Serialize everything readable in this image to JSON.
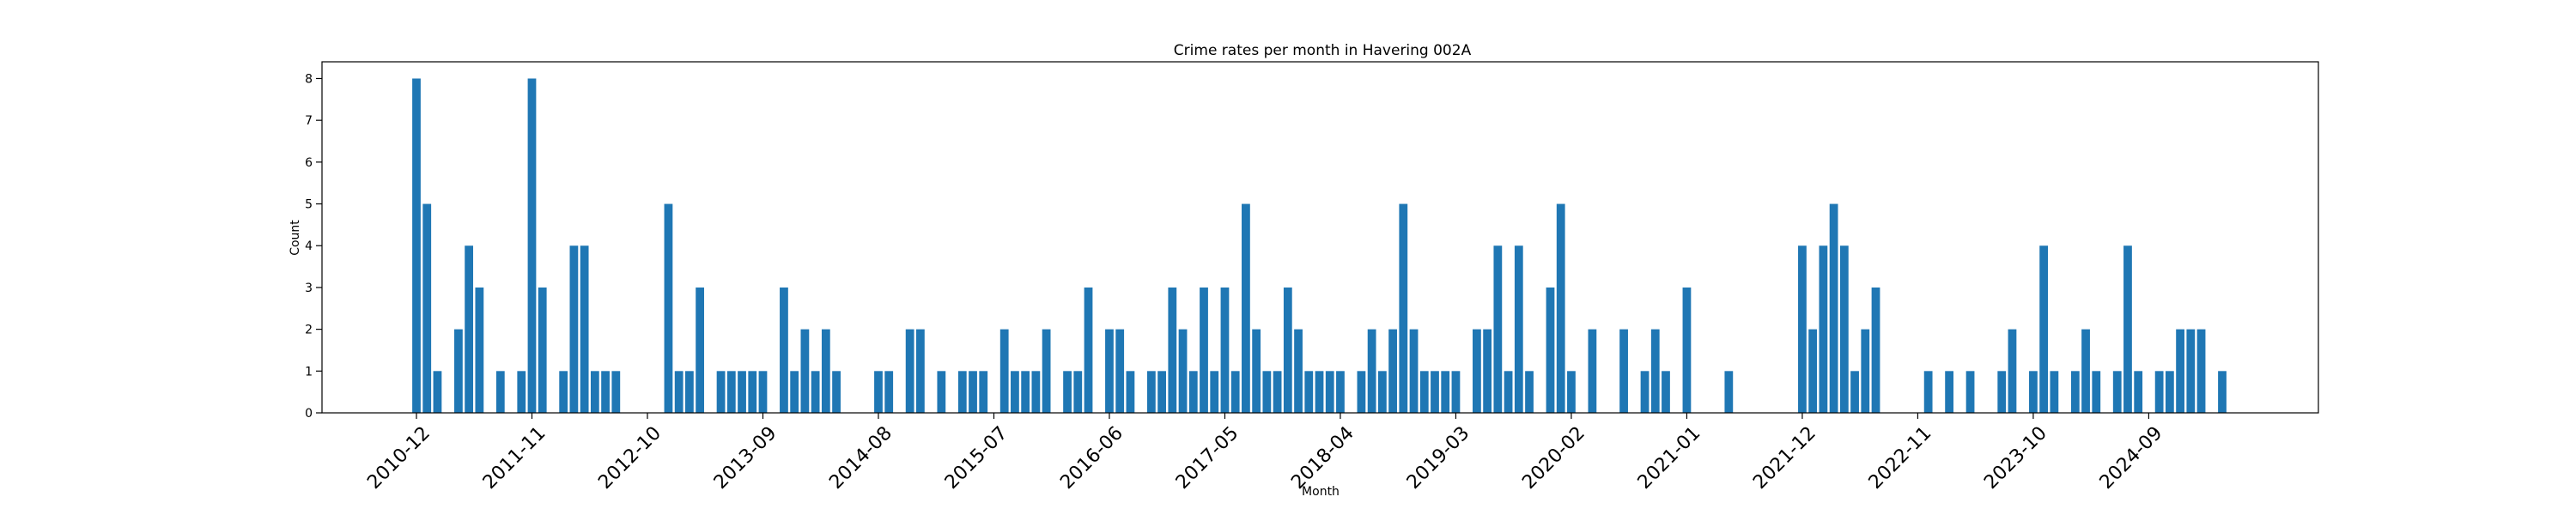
{
  "chart_data": {
    "type": "bar",
    "title": "Crime rates per month in Havering 002A",
    "xlabel": "Month",
    "ylabel": "Count",
    "ylim": [
      0,
      8.4
    ],
    "yticks": [
      0,
      1,
      2,
      3,
      4,
      5,
      6,
      7,
      8
    ],
    "xticks": [
      {
        "index": 0,
        "label": "2010-12"
      },
      {
        "index": 11,
        "label": "2011-11"
      },
      {
        "index": 22,
        "label": "2012-10"
      },
      {
        "index": 33,
        "label": "2013-09"
      },
      {
        "index": 44,
        "label": "2014-08"
      },
      {
        "index": 55,
        "label": "2015-07"
      },
      {
        "index": 66,
        "label": "2016-06"
      },
      {
        "index": 77,
        "label": "2017-05"
      },
      {
        "index": 88,
        "label": "2018-04"
      },
      {
        "index": 99,
        "label": "2019-03"
      },
      {
        "index": 110,
        "label": "2020-02"
      },
      {
        "index": 121,
        "label": "2021-01"
      },
      {
        "index": 132,
        "label": "2021-12"
      },
      {
        "index": 143,
        "label": "2022-11"
      },
      {
        "index": 154,
        "label": "2023-10"
      },
      {
        "index": 165,
        "label": "2024-09"
      }
    ],
    "grid": false,
    "color": "#1f77b4",
    "values": [
      8,
      5,
      1,
      0,
      2,
      4,
      3,
      0,
      1,
      0,
      1,
      8,
      3,
      0,
      1,
      4,
      4,
      1,
      1,
      1,
      0,
      0,
      0,
      0,
      5,
      1,
      1,
      3,
      0,
      1,
      1,
      1,
      1,
      1,
      0,
      3,
      1,
      2,
      1,
      2,
      1,
      0,
      0,
      0,
      1,
      1,
      0,
      2,
      2,
      0,
      1,
      0,
      1,
      1,
      1,
      0,
      2,
      1,
      1,
      1,
      2,
      0,
      1,
      1,
      3,
      0,
      2,
      2,
      1,
      0,
      1,
      1,
      3,
      2,
      1,
      3,
      1,
      3,
      1,
      5,
      2,
      1,
      1,
      3,
      2,
      1,
      1,
      1,
      1,
      0,
      1,
      2,
      1,
      2,
      5,
      2,
      1,
      1,
      1,
      1,
      0,
      2,
      2,
      4,
      1,
      4,
      1,
      0,
      3,
      5,
      1,
      0,
      2,
      0,
      0,
      2,
      0,
      1,
      2,
      1,
      0,
      3,
      0,
      0,
      0,
      1,
      0,
      0,
      0,
      0,
      0,
      0,
      4,
      2,
      4,
      5,
      4,
      1,
      2,
      3,
      0,
      0,
      0,
      0,
      1,
      0,
      1,
      0,
      1,
      0,
      0,
      1,
      2,
      0,
      1,
      4,
      1,
      0,
      1,
      2,
      1,
      0,
      1,
      4,
      1,
      0,
      1,
      1,
      2,
      2,
      2,
      0,
      1
    ]
  }
}
